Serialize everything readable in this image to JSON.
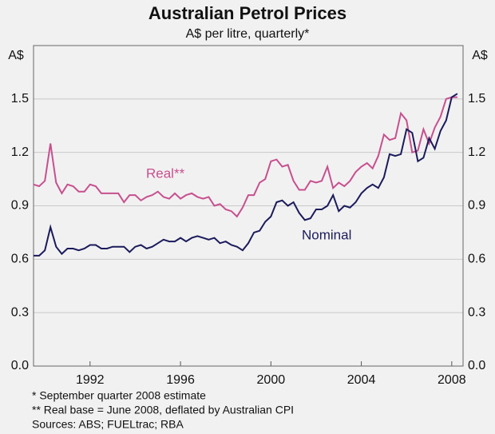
{
  "chart_data": {
    "type": "line",
    "title": "Australian Petrol Prices",
    "subtitle": "A$ per litre, quarterly*",
    "y_label": "A$",
    "y2_label": "A$",
    "notes": [
      "*  September quarter 2008 estimate",
      "** Real base = June 2008, deflated by Australian CPI",
      "Sources: ABS; FUELtrac; RBA"
    ],
    "x": [
      1989.5,
      1989.75,
      1990,
      1990.25,
      1990.5,
      1990.75,
      1991,
      1991.25,
      1991.5,
      1991.75,
      1992,
      1992.25,
      1992.5,
      1992.75,
      1993,
      1993.25,
      1993.5,
      1993.75,
      1994,
      1994.25,
      1994.5,
      1994.75,
      1995,
      1995.25,
      1995.5,
      1995.75,
      1996,
      1996.25,
      1996.5,
      1996.75,
      1997,
      1997.25,
      1997.5,
      1997.75,
      1998,
      1998.25,
      1998.5,
      1998.75,
      1999,
      1999.25,
      1999.5,
      1999.75,
      2000,
      2000.25,
      2000.5,
      2000.75,
      2001,
      2001.25,
      2001.5,
      2001.75,
      2002,
      2002.25,
      2002.5,
      2002.75,
      2003,
      2003.25,
      2003.5,
      2003.75,
      2004,
      2004.25,
      2004.5,
      2004.75,
      2005,
      2005.25,
      2005.5,
      2005.75,
      2006,
      2006.25,
      2006.5,
      2006.75,
      2007,
      2007.25,
      2007.5,
      2007.75,
      2008,
      2008.25
    ],
    "series": [
      {
        "name": "Real**",
        "color": "#c7508f",
        "values": [
          1.02,
          1.01,
          1.04,
          1.25,
          1.03,
          0.97,
          1.02,
          1.01,
          0.98,
          0.98,
          1.02,
          1.01,
          0.97,
          0.97,
          0.97,
          0.97,
          0.92,
          0.96,
          0.96,
          0.93,
          0.95,
          0.96,
          0.98,
          0.95,
          0.94,
          0.97,
          0.94,
          0.96,
          0.97,
          0.95,
          0.94,
          0.95,
          0.9,
          0.91,
          0.88,
          0.87,
          0.84,
          0.89,
          0.96,
          0.96,
          1.03,
          1.05,
          1.15,
          1.16,
          1.12,
          1.13,
          1.04,
          0.99,
          0.99,
          1.04,
          1.03,
          1.04,
          1.12,
          1.0,
          1.03,
          1.01,
          1.04,
          1.09,
          1.12,
          1.14,
          1.11,
          1.18,
          1.3,
          1.27,
          1.28,
          1.42,
          1.38,
          1.2,
          1.21,
          1.33,
          1.25,
          1.34,
          1.4,
          1.5,
          1.51,
          1.51
        ]
      },
      {
        "name": "Nominal",
        "color": "#1b1b5c",
        "values": [
          0.62,
          0.62,
          0.65,
          0.78,
          0.67,
          0.63,
          0.66,
          0.66,
          0.65,
          0.66,
          0.68,
          0.68,
          0.66,
          0.66,
          0.67,
          0.67,
          0.67,
          0.64,
          0.67,
          0.68,
          0.66,
          0.67,
          0.69,
          0.71,
          0.7,
          0.7,
          0.72,
          0.7,
          0.72,
          0.73,
          0.72,
          0.71,
          0.72,
          0.69,
          0.7,
          0.68,
          0.67,
          0.65,
          0.69,
          0.75,
          0.76,
          0.81,
          0.84,
          0.92,
          0.93,
          0.9,
          0.92,
          0.86,
          0.82,
          0.83,
          0.88,
          0.88,
          0.9,
          0.96,
          0.87,
          0.9,
          0.89,
          0.92,
          0.97,
          1.0,
          1.02,
          1.0,
          1.06,
          1.19,
          1.18,
          1.19,
          1.33,
          1.31,
          1.15,
          1.17,
          1.28,
          1.22,
          1.32,
          1.38,
          1.51,
          1.53
        ]
      }
    ],
    "xlim": [
      1989.5,
      2008.5
    ],
    "xticks": [
      1992,
      1996,
      2000,
      2004,
      2008
    ],
    "ylim": [
      0,
      1.8
    ],
    "yticks": [
      {
        "value": 0,
        "label": "0.0"
      },
      0.3,
      0.6,
      0.9,
      1.2,
      1.5
    ],
    "grid": true
  }
}
